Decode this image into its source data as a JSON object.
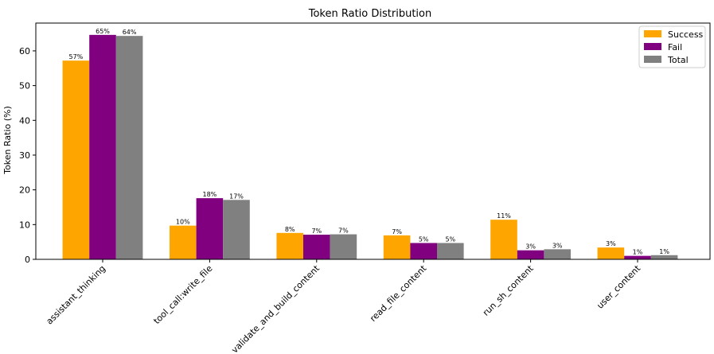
{
  "chart_data": {
    "type": "bar",
    "title": "Token Ratio Distribution",
    "xlabel": "",
    "ylabel": "Token Ratio (%)",
    "ylim": [
      0,
      68
    ],
    "yticks": [
      0,
      10,
      20,
      30,
      40,
      50,
      60
    ],
    "categories": [
      "assistant_thinking",
      "tool_call:write_file",
      "validate_and_build_content",
      "read_file_content",
      "run_sh_content",
      "user_content"
    ],
    "series": [
      {
        "name": "Success",
        "color": "#ffa500",
        "values": [
          57.2,
          9.7,
          7.6,
          6.9,
          11.4,
          3.4
        ],
        "labels": [
          "57%",
          "10%",
          "8%",
          "7%",
          "11%",
          "3%"
        ]
      },
      {
        "name": "Fail",
        "color": "#800080",
        "values": [
          64.6,
          17.6,
          7.1,
          4.7,
          2.6,
          1.0
        ],
        "labels": [
          "65%",
          "18%",
          "7%",
          "5%",
          "3%",
          "1%"
        ]
      },
      {
        "name": "Total",
        "color": "#808080",
        "values": [
          64.3,
          17.1,
          7.2,
          4.7,
          2.9,
          1.2
        ],
        "labels": [
          "64%",
          "17%",
          "7%",
          "5%",
          "3%",
          "1%"
        ]
      }
    ],
    "grid": false,
    "legend": "top-right"
  }
}
